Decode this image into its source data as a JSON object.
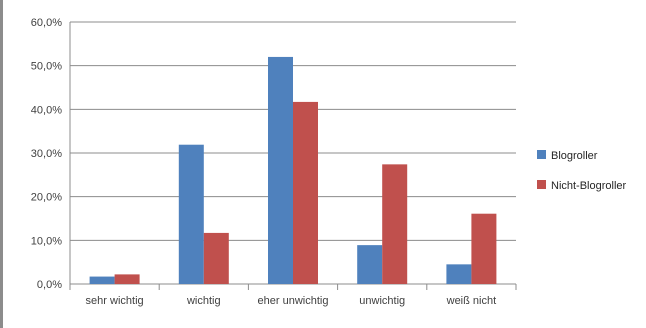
{
  "chart_data": {
    "type": "bar",
    "title": "",
    "xlabel": "",
    "ylabel": "",
    "categories": [
      "sehr wichtig",
      "wichtig",
      "eher unwichtig",
      "unwichtig",
      "weiß nicht"
    ],
    "ylim": [
      0,
      60
    ],
    "yticks": [
      0,
      10,
      20,
      30,
      40,
      50,
      60
    ],
    "ytick_labels": [
      "0,0%",
      "10,0%",
      "20,0%",
      "30,0%",
      "40,0%",
      "50,0%",
      "60,0%"
    ],
    "grid": true,
    "legend_position": "right",
    "series": [
      {
        "name": "Blogroller",
        "color": "#4f81bd",
        "values": [
          1.7,
          31.9,
          52.0,
          8.9,
          4.5
        ]
      },
      {
        "name": "Nicht-Blogroller",
        "color": "#c0504d",
        "values": [
          2.2,
          11.7,
          41.7,
          27.4,
          16.1
        ]
      }
    ]
  }
}
